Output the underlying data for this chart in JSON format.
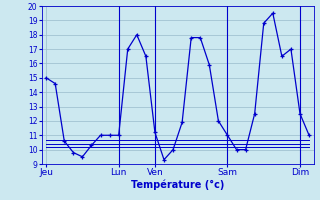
{
  "title": "Température (°c)",
  "bg_color": "#cce8f0",
  "grid_color": "#99bbcc",
  "line_color": "#0000cc",
  "ylim": [
    9,
    20
  ],
  "yticks": [
    9,
    10,
    11,
    12,
    13,
    14,
    15,
    16,
    17,
    18,
    19,
    20
  ],
  "day_labels": [
    "Jeu",
    "Lun",
    "Ven",
    "Sam",
    "Dim"
  ],
  "day_positions": [
    0,
    8,
    12,
    20,
    28
  ],
  "vline_positions": [
    8,
    12,
    20,
    28
  ],
  "main_line": [
    15.0,
    14.6,
    10.6,
    9.8,
    9.5,
    10.3,
    11.0,
    11.0,
    11.0,
    17.0,
    18.0,
    16.5,
    11.2,
    9.3,
    10.0,
    11.9,
    17.8,
    17.8,
    15.9,
    12.0,
    11.0,
    10.0,
    10.0,
    12.5,
    18.8,
    19.5,
    16.5,
    17.0,
    12.5,
    11.0
  ],
  "flat_lines": [
    10.7,
    10.4,
    10.15
  ],
  "n_points": 30,
  "xlabel_fontsize": 7,
  "ytick_fontsize": 5.5,
  "xtick_fontsize": 6.5
}
